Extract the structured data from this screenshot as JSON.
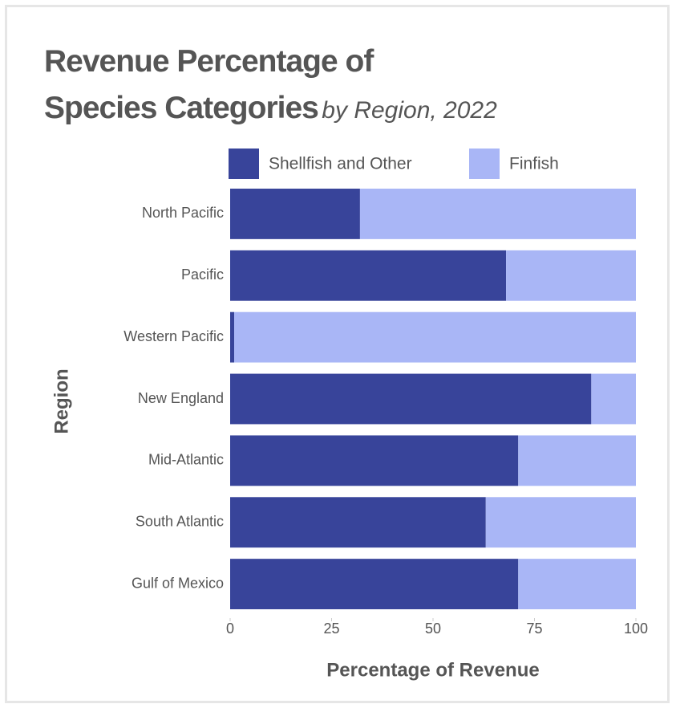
{
  "chart_data": {
    "type": "bar",
    "stacked": true,
    "orientation": "horizontal",
    "title": "Revenue Percentage of Species Categories",
    "subtitle": "by Region, 2022",
    "x_label": "Percentage of Revenue",
    "y_label": "Region",
    "categories": [
      "North Pacific",
      "Pacific",
      "Western Pacific",
      "New England",
      "Mid-Atlantic",
      "South Atlantic",
      "Gulf of Mexico"
    ],
    "series": [
      {
        "name": "Shellfish and Other",
        "color": "#38449a",
        "values": [
          32,
          68,
          1,
          89,
          71,
          63,
          71
        ]
      },
      {
        "name": "Finfish",
        "color": "#a9b6f6",
        "values": [
          68,
          32,
          99,
          11,
          29,
          37,
          29
        ]
      }
    ],
    "xlim": [
      0,
      100
    ],
    "xticks": [
      0,
      25,
      50,
      75,
      100
    ],
    "grid": false
  }
}
